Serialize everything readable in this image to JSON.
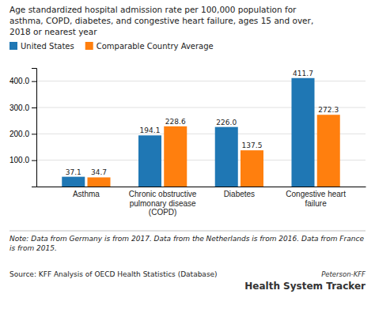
{
  "chart_data": {
    "type": "bar",
    "title": "Age standardized hospital admission rate per 100,000 population for\nasthma, COPD, diabetes, and congestive heart failure, ages 15 and over,\n2018 or nearest year",
    "categories": [
      "Asthma",
      "Chronic obstructive\npulmonary disease\n(COPD)",
      "Diabetes",
      "Congestive heart\nfailure"
    ],
    "series": [
      {
        "name": "United States",
        "values": [
          37.1,
          194.1,
          226.0,
          411.7
        ],
        "value_labels": [
          "37.1",
          "194.1",
          "226.0",
          "411.7"
        ]
      },
      {
        "name": "Comparable Country Average",
        "values": [
          34.7,
          228.6,
          137.5,
          272.3
        ]
      }
    ],
    "ylim": [
      0,
      450
    ],
    "yticks": [
      {
        "value": 100,
        "label": "100.0"
      },
      {
        "value": 200,
        "label": "200.0"
      },
      {
        "value": 300,
        "label": "300.0"
      },
      {
        "value": 400,
        "label": "400.0"
      }
    ],
    "grid": true,
    "legend": "top",
    "data_labels": true,
    "note": "Note: Data from Germany is from 2017. Data from the Netherlands is from 2016. Data from France is from 2015.",
    "source": "Source: KFF Analysis of OECD Health Statistics (Database)",
    "annotations": [
      "Peterson-KFF",
      "Health System Tracker"
    ]
  }
}
